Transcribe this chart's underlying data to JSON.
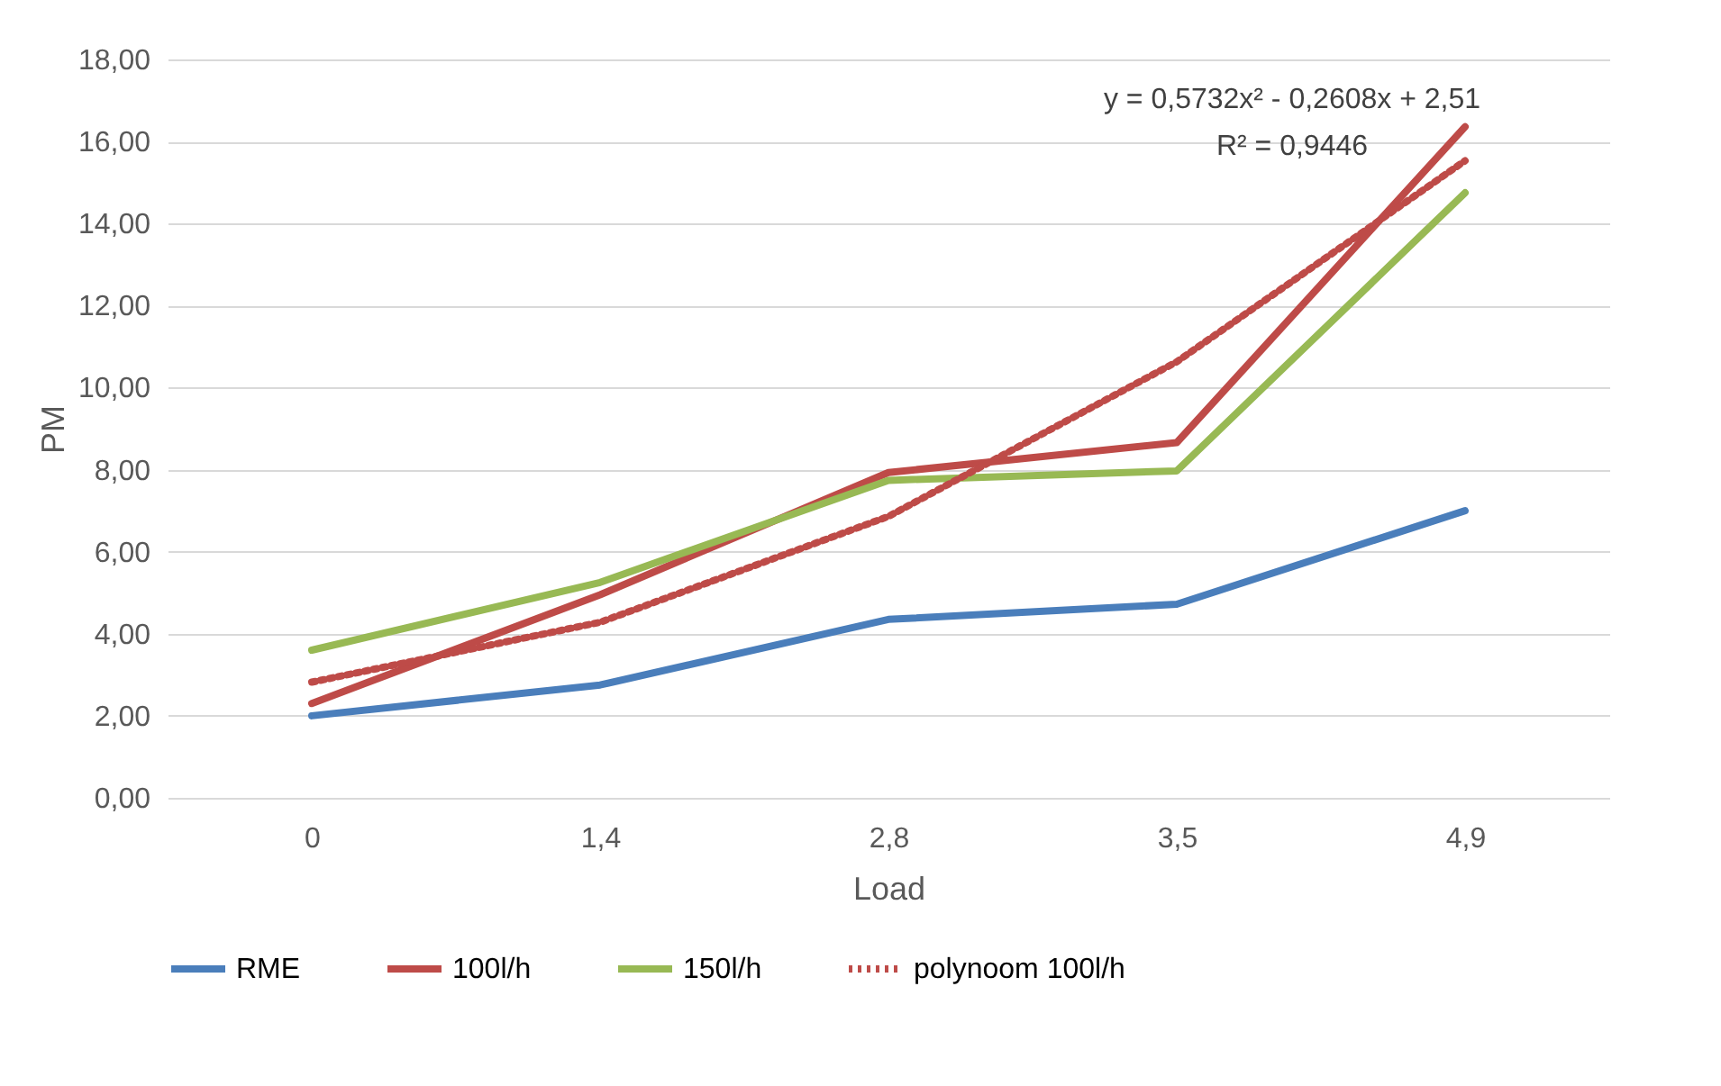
{
  "chart_data": {
    "type": "line",
    "xlabel": "Load",
    "ylabel": "PM",
    "categories": [
      "0",
      "1,4",
      "2,8",
      "3,5",
      "4,9"
    ],
    "series": [
      {
        "name": "RME",
        "color": "#4a7ebb",
        "values": [
          2.0,
          2.75,
          4.35,
          4.72,
          7.0
        ]
      },
      {
        "name": "100l/h",
        "color": "#be4b48",
        "values": [
          2.3,
          4.95,
          7.93,
          8.66,
          16.36
        ]
      },
      {
        "name": "150l/h",
        "color": "#98b954",
        "values": [
          3.6,
          5.25,
          7.74,
          7.97,
          14.75
        ]
      },
      {
        "name": "polynoom 100l/h",
        "color": "#be4b48",
        "line_style": "dotted",
        "values": [
          2.82,
          4.28,
          6.86,
          10.63,
          15.53
        ]
      }
    ],
    "ylim": [
      0,
      18
    ],
    "yticks": [
      {
        "value": 0,
        "label": "0,00"
      },
      {
        "value": 2,
        "label": "2,00"
      },
      {
        "value": 4,
        "label": "4,00"
      },
      {
        "value": 6,
        "label": "6,00"
      },
      {
        "value": 8,
        "label": "8,00"
      },
      {
        "value": 10,
        "label": "10,00"
      },
      {
        "value": 12,
        "label": "12,00"
      },
      {
        "value": 14,
        "label": "14,00"
      },
      {
        "value": 16,
        "label": "16,00"
      },
      {
        "value": 18,
        "label": "18,00"
      }
    ],
    "annotations": [
      "y = 0,5732x² - 0,2608x + 2,51",
      "R² = 0,9446"
    ],
    "grid": "y",
    "legend": "bottom",
    "line_style": "solid"
  }
}
